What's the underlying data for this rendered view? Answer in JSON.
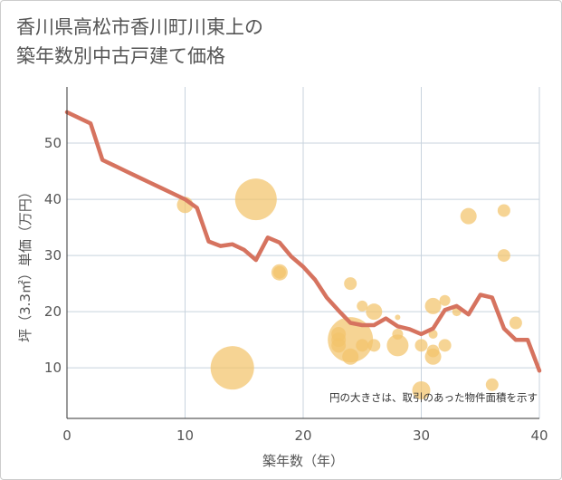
{
  "chart_data": {
    "type": "scatter",
    "title_lines": [
      "香川県高松市香川町川東上の",
      "築年数別中古戸建て価格"
    ],
    "xlabel": "築年数（年）",
    "ylabel": "坪（3.3㎡）単価（万円）",
    "xlim": [
      0,
      40
    ],
    "ylim": [
      1,
      60
    ],
    "xticks": [
      0,
      10,
      20,
      30,
      40
    ],
    "yticks": [
      10,
      20,
      30,
      40,
      50
    ],
    "grid": true,
    "annotation": "円の大きさは、取引のあった物件面積を示す",
    "colors": {
      "bubble": "#f3c36b",
      "line": "#d6735f",
      "grid": "#c8d3de"
    },
    "bubbles": [
      {
        "x": 10,
        "y": 39,
        "size": 9
      },
      {
        "x": 14,
        "y": 10,
        "size": 24
      },
      {
        "x": 16,
        "y": 40,
        "size": 23
      },
      {
        "x": 18,
        "y": 27,
        "size": 9
      },
      {
        "x": 18,
        "y": 27,
        "size": 7
      },
      {
        "x": 23,
        "y": 16,
        "size": 8
      },
      {
        "x": 23,
        "y": 15,
        "size": 8
      },
      {
        "x": 23,
        "y": 14,
        "size": 8
      },
      {
        "x": 24,
        "y": 25,
        "size": 7
      },
      {
        "x": 24,
        "y": 15,
        "size": 25
      },
      {
        "x": 24,
        "y": 12,
        "size": 9
      },
      {
        "x": 25,
        "y": 21,
        "size": 6
      },
      {
        "x": 25,
        "y": 14,
        "size": 7
      },
      {
        "x": 26,
        "y": 20,
        "size": 9
      },
      {
        "x": 26,
        "y": 14,
        "size": 7
      },
      {
        "x": 28,
        "y": 19,
        "size": 3
      },
      {
        "x": 28,
        "y": 16,
        "size": 6
      },
      {
        "x": 28,
        "y": 14,
        "size": 12
      },
      {
        "x": 30,
        "y": 14,
        "size": 7
      },
      {
        "x": 30,
        "y": 6,
        "size": 10
      },
      {
        "x": 31,
        "y": 21,
        "size": 9
      },
      {
        "x": 31,
        "y": 16,
        "size": 5
      },
      {
        "x": 31,
        "y": 13,
        "size": 7
      },
      {
        "x": 31,
        "y": 12,
        "size": 9
      },
      {
        "x": 32,
        "y": 22,
        "size": 6
      },
      {
        "x": 32,
        "y": 14,
        "size": 7
      },
      {
        "x": 33,
        "y": 20,
        "size": 5
      },
      {
        "x": 34,
        "y": 37,
        "size": 9
      },
      {
        "x": 36,
        "y": 7,
        "size": 7
      },
      {
        "x": 37,
        "y": 38,
        "size": 7
      },
      {
        "x": 37,
        "y": 30,
        "size": 7
      },
      {
        "x": 38,
        "y": 18,
        "size": 7
      }
    ],
    "line": {
      "x": [
        0,
        2,
        3,
        4,
        5,
        6,
        7,
        8,
        9,
        10,
        11,
        12,
        13,
        14,
        15,
        16,
        17,
        18,
        19,
        20,
        21,
        22,
        23,
        24,
        25,
        26,
        27,
        28,
        29,
        30,
        31,
        32,
        33,
        34,
        35,
        36,
        37,
        38,
        39,
        40
      ],
      "y": [
        55.5,
        53.5,
        47,
        46,
        45,
        44,
        43,
        42,
        41,
        40,
        38.5,
        32.5,
        31.7,
        32,
        31,
        29.2,
        33.2,
        32.3,
        29.8,
        28,
        25.7,
        22.5,
        20.2,
        18,
        17.6,
        17.6,
        18.8,
        17.4,
        16.9,
        16,
        17,
        20.3,
        21,
        19.5,
        23,
        22.5,
        17,
        15,
        15,
        9.5
      ]
    }
  }
}
